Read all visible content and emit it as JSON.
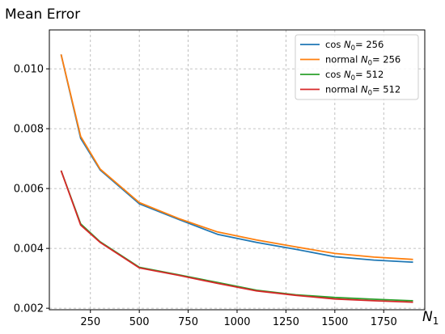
{
  "chart_data": {
    "type": "line",
    "ylabel": "Mean Error",
    "xlabel_main": "N",
    "xlabel_sub": "1",
    "xlim": [
      40,
      1960
    ],
    "ylim": [
      0.00195,
      0.0113
    ],
    "xticks": [
      250,
      500,
      750,
      1000,
      1250,
      1500,
      1750
    ],
    "xtick_labels": [
      "250",
      "500",
      "750",
      "1000",
      "1250",
      "1500",
      "1750"
    ],
    "yticks": [
      0.002,
      0.004,
      0.006,
      0.008,
      0.01
    ],
    "ytick_labels": [
      "0.002",
      "0.004",
      "0.006",
      "0.008",
      "0.010"
    ],
    "grid": true,
    "legend_position": "top-right",
    "x": [
      100,
      200,
      300,
      500,
      700,
      900,
      1100,
      1300,
      1500,
      1700,
      1900
    ],
    "series": [
      {
        "name": "cos",
        "subscript_label": "N",
        "subscript": "0",
        "equals": "= 256",
        "color": "#1f77b4",
        "values": [
          0.01048,
          0.00768,
          0.00662,
          0.00549,
          0.00497,
          0.00447,
          0.0042,
          0.00397,
          0.00372,
          0.00361,
          0.00354
        ]
      },
      {
        "name": "normal",
        "subscript_label": "N",
        "subscript": "0",
        "equals": "= 256",
        "color": "#ff7f0e",
        "values": [
          0.01048,
          0.00774,
          0.00665,
          0.00553,
          0.005,
          0.00455,
          0.00428,
          0.00405,
          0.00383,
          0.00371,
          0.00363
        ]
      },
      {
        "name": "cos",
        "subscript_label": "N",
        "subscript": "0",
        "equals": "= 512",
        "color": "#2ca02c",
        "values": [
          0.0066,
          0.00482,
          0.00422,
          0.00337,
          0.00312,
          0.00286,
          0.0026,
          0.00245,
          0.00236,
          0.0023,
          0.00225
        ]
      },
      {
        "name": "normal",
        "subscript_label": "N",
        "subscript": "0",
        "equals": "= 512",
        "color": "#d62728",
        "values": [
          0.0066,
          0.00478,
          0.0042,
          0.00335,
          0.0031,
          0.00283,
          0.00258,
          0.00243,
          0.00231,
          0.00225,
          0.0022
        ]
      }
    ]
  }
}
